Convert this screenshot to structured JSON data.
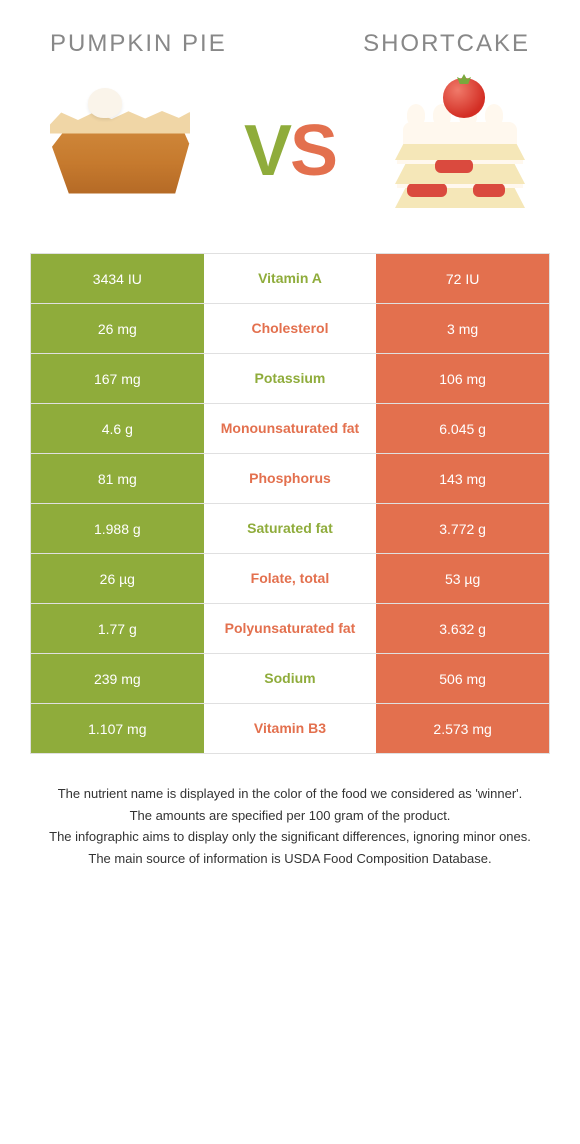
{
  "colors": {
    "left": "#8fac3b",
    "right": "#e3704e",
    "left_text": "#8fac3b",
    "right_text": "#e3704e",
    "title_grey": "#888888",
    "cell_text": "#ffffff",
    "border": "#e0e0e0"
  },
  "titles": {
    "left": "PUMPKIN PIE",
    "right": "SHORTCAKE"
  },
  "vs": {
    "v": "V",
    "s": "S"
  },
  "table": {
    "rows": [
      {
        "left": "3434 IU",
        "label": "Vitamin A",
        "right": "72 IU",
        "winner": "left"
      },
      {
        "left": "26 mg",
        "label": "Cholesterol",
        "right": "3 mg",
        "winner": "right"
      },
      {
        "left": "167 mg",
        "label": "Potassium",
        "right": "106 mg",
        "winner": "left"
      },
      {
        "left": "4.6 g",
        "label": "Monounsaturated fat",
        "right": "6.045 g",
        "winner": "right"
      },
      {
        "left": "81 mg",
        "label": "Phosphorus",
        "right": "143 mg",
        "winner": "right"
      },
      {
        "left": "1.988 g",
        "label": "Saturated fat",
        "right": "3.772 g",
        "winner": "left"
      },
      {
        "left": "26 µg",
        "label": "Folate, total",
        "right": "53 µg",
        "winner": "right"
      },
      {
        "left": "1.77 g",
        "label": "Polyunsaturated fat",
        "right": "3.632 g",
        "winner": "right"
      },
      {
        "left": "239 mg",
        "label": "Sodium",
        "right": "506 mg",
        "winner": "left"
      },
      {
        "left": "1.107 mg",
        "label": "Vitamin B3",
        "right": "2.573 mg",
        "winner": "right"
      }
    ]
  },
  "footer": {
    "lines": [
      "The nutrient name is displayed in the color of the food we considered as 'winner'.",
      "The amounts are specified per 100 gram of the product.",
      "The infographic aims to display only the significant differences, ignoring minor ones.",
      "The main source of information is USDA Food Composition Database."
    ]
  }
}
